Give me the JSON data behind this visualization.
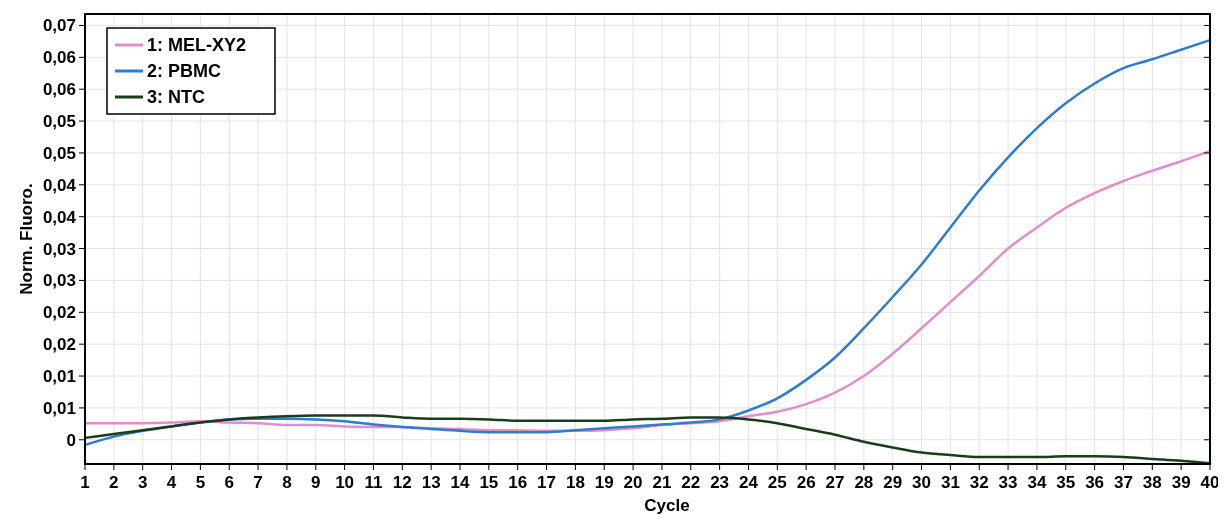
{
  "chart_data": {
    "type": "line",
    "xlabel": "Cycle",
    "ylabel": "Norm. Fluoro.",
    "x": [
      1,
      2,
      3,
      4,
      5,
      6,
      7,
      8,
      9,
      10,
      11,
      12,
      13,
      14,
      15,
      16,
      17,
      18,
      19,
      20,
      21,
      22,
      23,
      24,
      25,
      26,
      27,
      28,
      29,
      30,
      31,
      32,
      33,
      34,
      35,
      36,
      37,
      38,
      39,
      40
    ],
    "xlim": [
      1,
      40
    ],
    "xticks": [
      1,
      2,
      3,
      4,
      5,
      6,
      7,
      8,
      9,
      10,
      11,
      12,
      13,
      14,
      15,
      16,
      17,
      18,
      19,
      20,
      21,
      22,
      23,
      24,
      25,
      26,
      27,
      28,
      29,
      30,
      31,
      32,
      33,
      34,
      35,
      36,
      37,
      38,
      39,
      40
    ],
    "ylim": [
      -0.0038,
      0.0668
    ],
    "yticks": [
      0,
      {
        "value": 0.005,
        "label": "0,01"
      },
      {
        "value": 0.01,
        "label": "0,01"
      },
      {
        "value": 0.015,
        "label": "0,02"
      },
      {
        "value": 0.02,
        "label": "0,02"
      },
      {
        "value": 0.025,
        "label": "0,03"
      },
      {
        "value": 0.03,
        "label": "0,03"
      },
      {
        "value": 0.035,
        "label": "0,04"
      },
      {
        "value": 0.04,
        "label": "0,04"
      },
      {
        "value": 0.045,
        "label": "0,05"
      },
      {
        "value": 0.05,
        "label": "0,05"
      },
      {
        "value": 0.055,
        "label": "0,06"
      },
      {
        "value": 0.06,
        "label": "0,06"
      },
      {
        "value": 0.065,
        "label": "0,07"
      }
    ],
    "grid": true,
    "legend": "top left",
    "marker": "none",
    "line_style": "solid",
    "series": [
      {
        "name": "1: MEL-XY2",
        "color": "#e08fcc",
        "values": [
          0.0026,
          0.0026,
          0.0026,
          0.0027,
          0.0029,
          0.0027,
          0.0026,
          0.0023,
          0.0023,
          0.0021,
          0.002,
          0.002,
          0.0018,
          0.0017,
          0.0015,
          0.0015,
          0.0014,
          0.0014,
          0.0015,
          0.0018,
          0.0023,
          0.0026,
          0.0029,
          0.0037,
          0.0044,
          0.0056,
          0.0074,
          0.01,
          0.0135,
          0.0175,
          0.0216,
          0.0257,
          0.03,
          0.0333,
          0.0364,
          0.0387,
          0.0406,
          0.0422,
          0.0437,
          0.0453
        ]
      },
      {
        "name": "2: PBMC",
        "color": "#2f7ccc",
        "values": [
          -0.0008,
          0.0005,
          0.0014,
          0.0021,
          0.0027,
          0.0032,
          0.0033,
          0.0033,
          0.0032,
          0.0029,
          0.0024,
          0.002,
          0.0017,
          0.0014,
          0.0012,
          0.0012,
          0.0012,
          0.0015,
          0.0018,
          0.0021,
          0.0024,
          0.0027,
          0.0032,
          0.0046,
          0.0065,
          0.0094,
          0.0129,
          0.0175,
          0.0224,
          0.0275,
          0.0333,
          0.0391,
          0.0443,
          0.0489,
          0.0528,
          0.0559,
          0.0583,
          0.0597,
          0.0612,
          0.0627
        ]
      },
      {
        "name": "3: NTC",
        "color": "#1a3d1a",
        "values": [
          0.0003,
          0.0009,
          0.0015,
          0.0021,
          0.0027,
          0.0032,
          0.0035,
          0.0037,
          0.0038,
          0.0038,
          0.0038,
          0.0035,
          0.0033,
          0.0033,
          0.0032,
          0.003,
          0.003,
          0.003,
          0.003,
          0.0032,
          0.0033,
          0.0035,
          0.0035,
          0.0032,
          0.0026,
          0.0017,
          0.0008,
          -0.0003,
          -0.0012,
          -0.002,
          -0.0024,
          -0.0027,
          -0.0027,
          -0.0027,
          -0.0026,
          -0.0026,
          -0.0027,
          -0.003,
          -0.0033,
          -0.0037
        ]
      }
    ]
  }
}
